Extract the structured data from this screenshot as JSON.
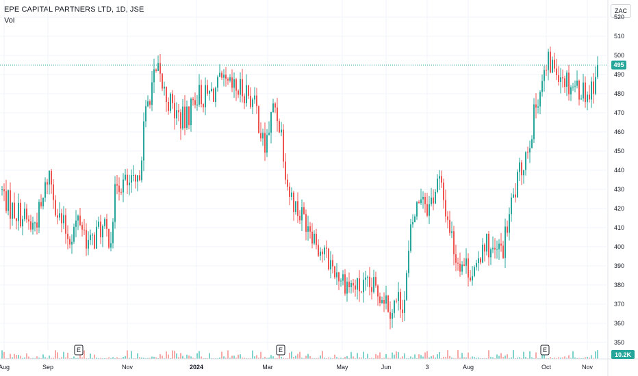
{
  "header": {
    "title": "EPE CAPITAL PARTNERS LTD, 1D, JSE",
    "volume_label": "Vol",
    "currency": "ZAC"
  },
  "colors": {
    "up": "#26a69a",
    "down": "#ef5350",
    "up_volume": "#7ed3cc",
    "down_volume": "#f7a9a7",
    "last_price": "#26a69a",
    "grid": "#f0f3fa",
    "axis_line": "#e0e3eb"
  },
  "chart_data": {
    "type": "candlestick",
    "title": "EPE CAPITAL PARTNERS LTD, 1D, JSE",
    "y_axis": {
      "ticks": [
        "350",
        "360",
        "370",
        "380",
        "390",
        "400",
        "410",
        "420",
        "430",
        "440",
        "450",
        "460",
        "470",
        "480",
        "490",
        "500",
        "510",
        "520"
      ],
      "range": [
        346,
        529
      ],
      "position": "right"
    },
    "x_axis": {
      "labels": [
        "Aug",
        "Sep",
        "Nov",
        "2024",
        "Mar",
        "May",
        "Jun",
        "3",
        "Aug",
        "Oct",
        "Nov"
      ],
      "bold_labels": [
        "2024"
      ]
    },
    "last_price": {
      "value": 495,
      "label": "495"
    },
    "last_volume": {
      "label": "10.2K"
    },
    "earnings_markers": [
      "E",
      "E",
      "E"
    ],
    "grid": true,
    "series": [
      {
        "name": "price",
        "control_points": [
          [
            0,
            430
          ],
          [
            15,
            420
          ],
          [
            30,
            417
          ],
          [
            45,
            410
          ],
          [
            60,
            420
          ],
          [
            70,
            440
          ],
          [
            85,
            415
          ],
          [
            100,
            405
          ],
          [
            115,
            415
          ],
          [
            130,
            400
          ],
          [
            145,
            410
          ],
          [
            160,
            405
          ],
          [
            170,
            435
          ],
          [
            185,
            432
          ],
          [
            200,
            431
          ],
          [
            210,
            465
          ],
          [
            220,
            485
          ],
          [
            230,
            490
          ],
          [
            240,
            480
          ],
          [
            255,
            470
          ],
          [
            270,
            465
          ],
          [
            285,
            480
          ],
          [
            300,
            478
          ],
          [
            320,
            484
          ],
          [
            340,
            482
          ],
          [
            360,
            482
          ],
          [
            375,
            470
          ],
          [
            385,
            450
          ],
          [
            400,
            475
          ],
          [
            410,
            460
          ],
          [
            420,
            430
          ],
          [
            435,
            418
          ],
          [
            450,
            413
          ],
          [
            465,
            400
          ],
          [
            480,
            392
          ],
          [
            495,
            385
          ],
          [
            510,
            380
          ],
          [
            525,
            378
          ],
          [
            545,
            378
          ],
          [
            560,
            375
          ],
          [
            570,
            368
          ],
          [
            580,
            372
          ],
          [
            590,
            372
          ],
          [
            600,
            410
          ],
          [
            615,
            430
          ],
          [
            625,
            420
          ],
          [
            640,
            435
          ],
          [
            655,
            412
          ],
          [
            665,
            395
          ],
          [
            680,
            390
          ],
          [
            695,
            385
          ],
          [
            705,
            405
          ],
          [
            720,
            395
          ],
          [
            735,
            400
          ],
          [
            745,
            420
          ],
          [
            760,
            440
          ],
          [
            775,
            460
          ],
          [
            785,
            480
          ],
          [
            800,
            495
          ],
          [
            815,
            493
          ],
          [
            830,
            486
          ],
          [
            845,
            483
          ],
          [
            860,
            480
          ],
          [
            873,
            495
          ]
        ]
      }
    ]
  }
}
